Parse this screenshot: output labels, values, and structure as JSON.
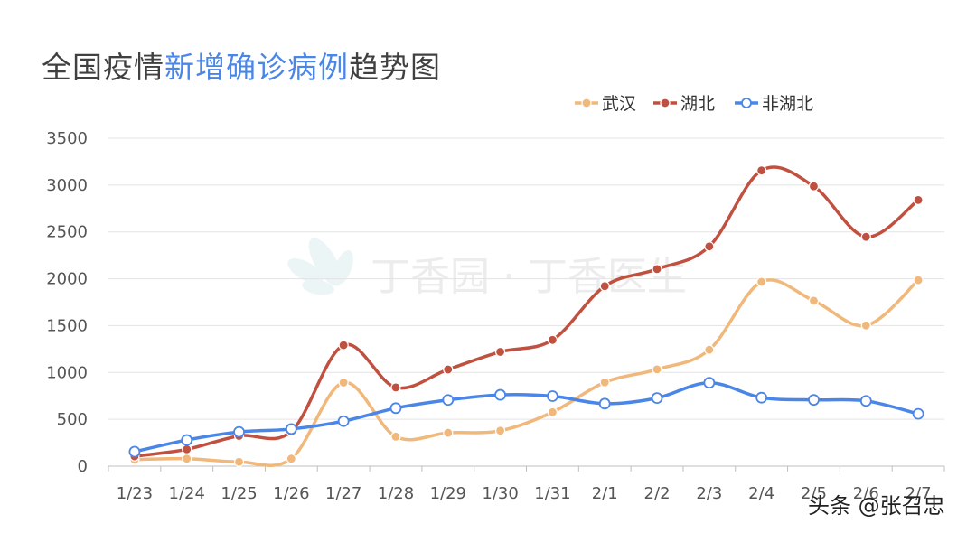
{
  "title": {
    "prefix": "全国疫情",
    "accent": "新增确诊病例",
    "suffix": "趋势图"
  },
  "watermark": "丁香园 · 丁香医生",
  "credit": "头条 @张召忠",
  "colors": {
    "accent": "#4a86e8",
    "wuhan": "#f0b87a",
    "hubei": "#c0503f",
    "non_hubei": "#4a86e8"
  },
  "chart_data": {
    "type": "line",
    "categories": [
      "1/23",
      "1/24",
      "1/25",
      "1/26",
      "1/27",
      "1/28",
      "1/29",
      "1/30",
      "1/31",
      "2/1",
      "2/2",
      "2/3",
      "2/4",
      "2/5",
      "2/6",
      "2/7"
    ],
    "ylim": [
      0,
      3500
    ],
    "yticks": [
      0,
      500,
      1000,
      1500,
      2000,
      2500,
      3000,
      3500
    ],
    "grid": true,
    "legend_position": "top-right",
    "series": [
      {
        "name": "武汉",
        "color": "#f0b87a",
        "marker": "filled",
        "values": [
          70,
          80,
          46,
          80,
          892,
          315,
          356,
          378,
          576,
          894,
          1033,
          1242,
          1967,
          1766,
          1501,
          1985
        ]
      },
      {
        "name": "湖北",
        "color": "#c0503f",
        "marker": "filled",
        "values": [
          105,
          180,
          323,
          371,
          1291,
          840,
          1032,
          1220,
          1347,
          1921,
          2103,
          2345,
          3156,
          2987,
          2447,
          2841
        ]
      },
      {
        "name": "非湖北",
        "color": "#4a86e8",
        "marker": "hollow",
        "values": [
          154,
          279,
          365,
          396,
          480,
          619,
          706,
          761,
          747,
          667,
          727,
          890,
          731,
          707,
          696,
          558
        ]
      }
    ]
  }
}
